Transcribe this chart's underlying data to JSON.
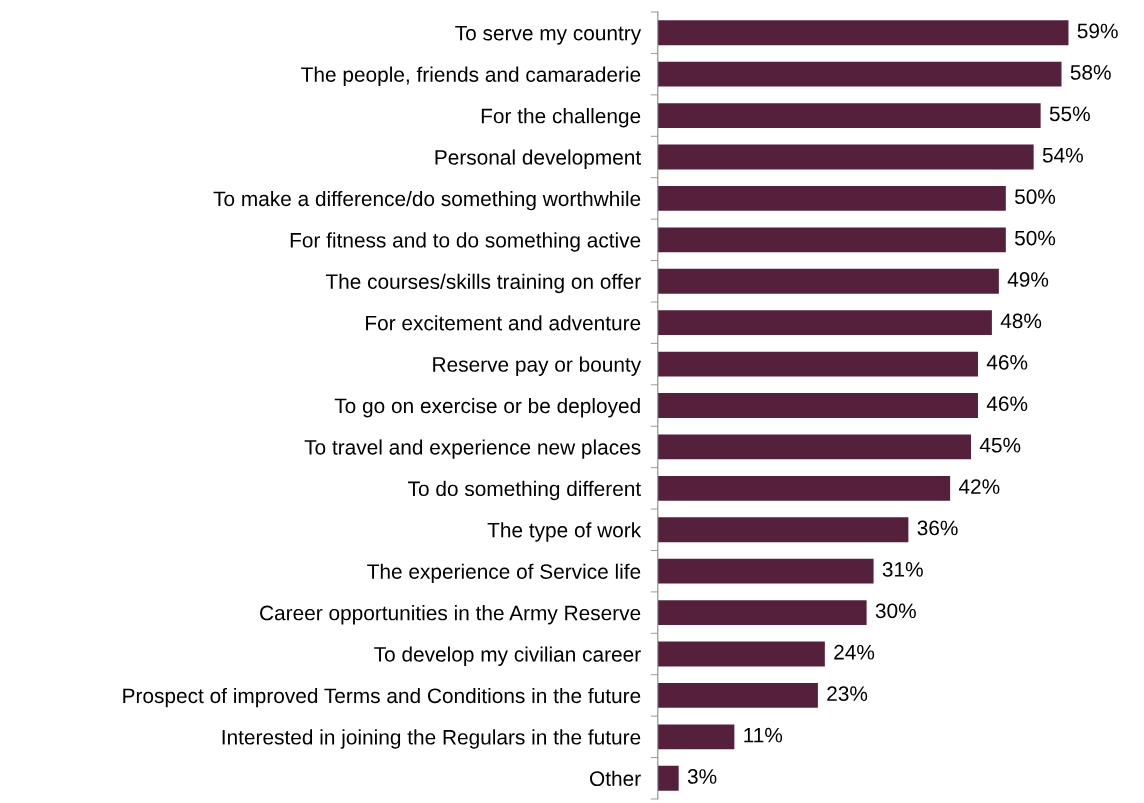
{
  "chart_data": {
    "type": "bar",
    "orientation": "horizontal",
    "color": "#55203b",
    "categories": [
      "To serve my country",
      "The people, friends and camaraderie",
      "For the challenge",
      "Personal development",
      "To make a difference/do something worthwhile",
      "For fitness and to do something active",
      "The courses/skills training on offer",
      "For excitement and adventure",
      "Reserve pay or bounty",
      "To go on exercise or be deployed",
      "To travel and experience new places",
      "To do something different",
      "The type of work",
      "The experience of Service life",
      "Career opportunities in the Army Reserve",
      "To develop my civilian career",
      "Prospect of improved Terms and Conditions in the future",
      "Interested in joining the Regulars in the future",
      "Other"
    ],
    "values": [
      59,
      58,
      55,
      54,
      50,
      50,
      49,
      48,
      46,
      46,
      45,
      42,
      36,
      31,
      30,
      24,
      23,
      11,
      3
    ],
    "value_labels": [
      "59%",
      "58%",
      "55%",
      "54%",
      "50%",
      "50%",
      "49%",
      "48%",
      "46%",
      "46%",
      "45%",
      "42%",
      "36%",
      "31%",
      "30%",
      "24%",
      "23%",
      "11%",
      "3%"
    ]
  }
}
